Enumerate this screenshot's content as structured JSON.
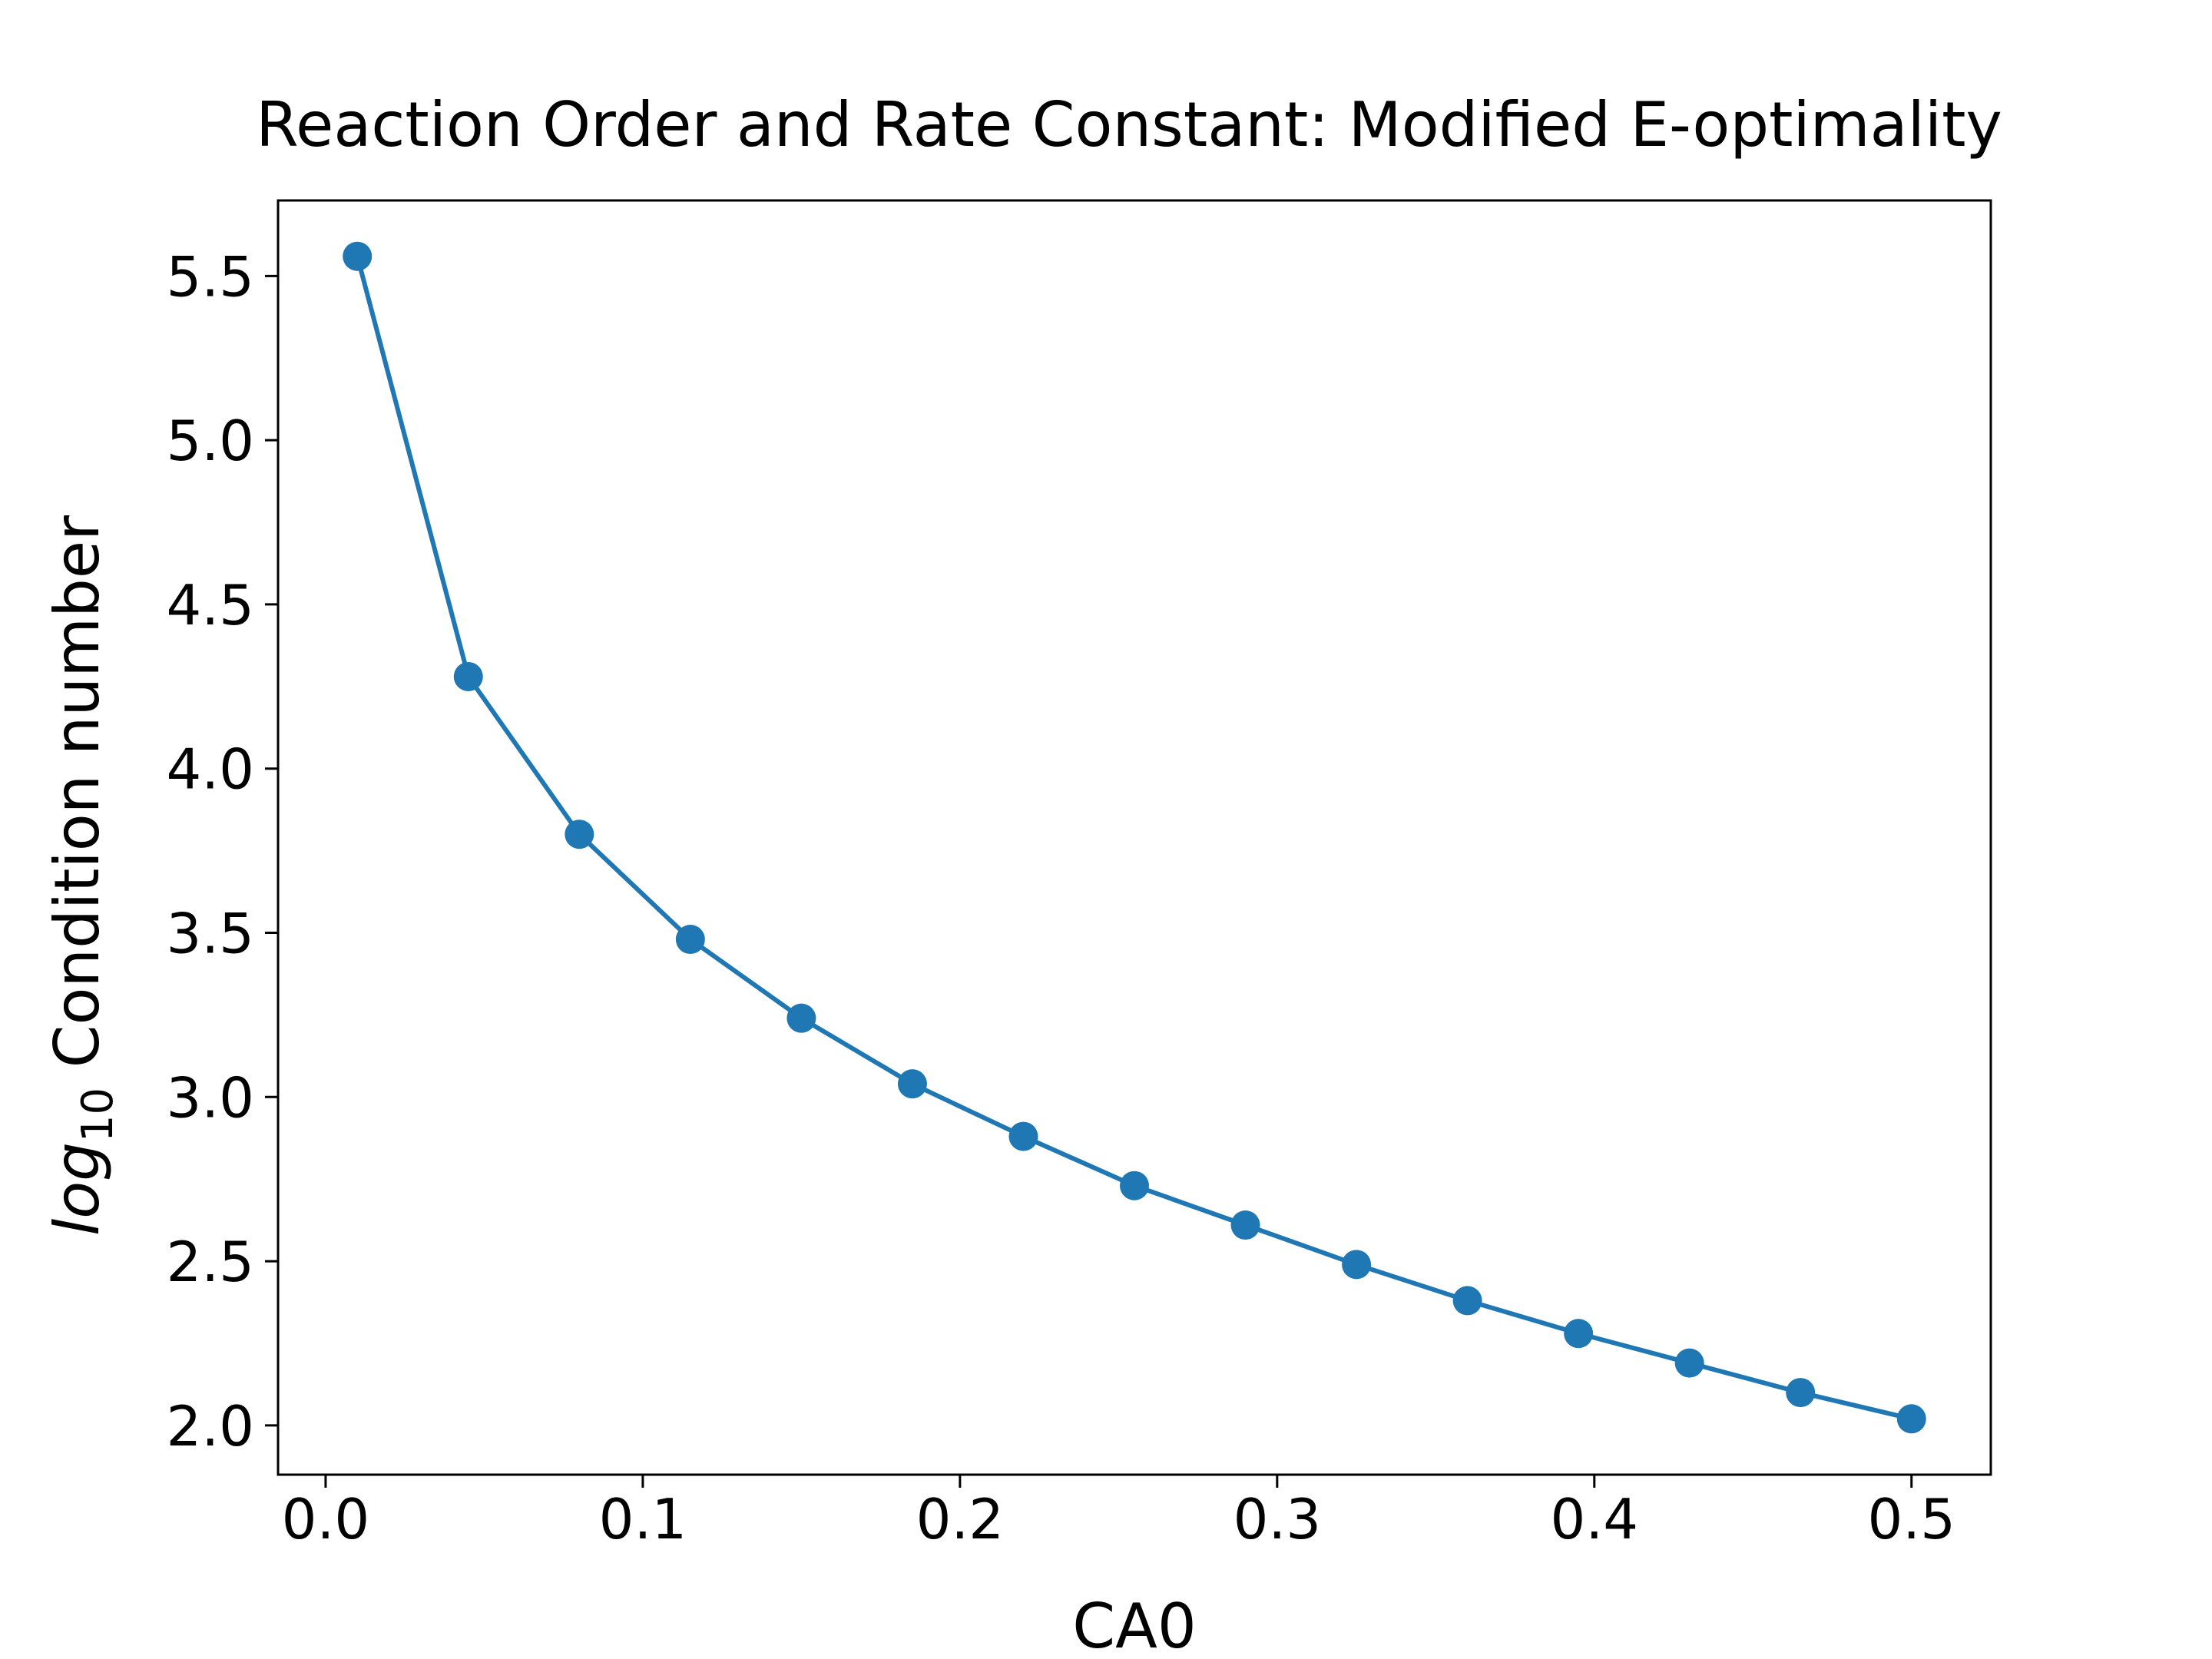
{
  "chart_data": {
    "type": "line",
    "title": "Reaction Order and Rate Constant: Modified E-optimality",
    "xlabel": "CA0",
    "ylabel": {
      "prefix": "log",
      "subscript": "10",
      "suffix": " Condition number"
    },
    "xlim": [
      -0.015,
      0.525
    ],
    "ylim": [
      1.85,
      5.73
    ],
    "xticks": [
      0.0,
      0.1,
      0.2,
      0.3,
      0.4,
      0.5
    ],
    "xtick_labels": [
      "0.0",
      "0.1",
      "0.2",
      "0.3",
      "0.4",
      "0.5"
    ],
    "yticks": [
      2.0,
      2.5,
      3.0,
      3.5,
      4.0,
      4.5,
      5.0,
      5.5
    ],
    "ytick_labels": [
      "2.0",
      "2.5",
      "3.0",
      "3.5",
      "4.0",
      "4.5",
      "5.0",
      "5.5"
    ],
    "grid": false,
    "color": "#1f77b4",
    "marker": "circle",
    "x": [
      0.01,
      0.045,
      0.08,
      0.115,
      0.15,
      0.185,
      0.22,
      0.255,
      0.29,
      0.325,
      0.36,
      0.395,
      0.43,
      0.465,
      0.5
    ],
    "y": [
      5.56,
      4.28,
      3.8,
      3.48,
      3.24,
      3.04,
      2.88,
      2.73,
      2.61,
      2.49,
      2.38,
      2.28,
      2.19,
      2.1,
      2.02
    ]
  }
}
